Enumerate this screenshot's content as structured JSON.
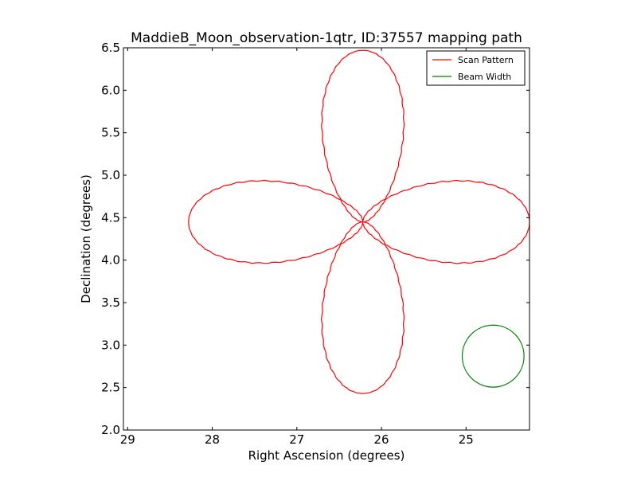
{
  "chart_data": {
    "type": "line",
    "title": "MaddieB_Moon_observation-1qtr, ID:37557 mapping path",
    "xlabel": "Right Ascension (degrees)",
    "ylabel": "Declination (degrees)",
    "xlim": [
      29.05,
      24.25
    ],
    "ylim": [
      2.0,
      6.5
    ],
    "x_ticks": [
      29,
      28,
      27,
      26,
      25
    ],
    "x_tick_labels": [
      "29",
      "28",
      "27",
      "26",
      "25"
    ],
    "y_ticks": [
      2.0,
      2.5,
      3.0,
      3.5,
      4.0,
      4.5,
      5.0,
      5.5,
      6.0,
      6.5
    ],
    "y_tick_labels": [
      "2.0",
      "2.5",
      "3.0",
      "3.5",
      "4.0",
      "4.5",
      "5.0",
      "5.5",
      "6.0",
      "6.5"
    ],
    "grid": false,
    "legend_position": "top-right",
    "series": [
      {
        "name": "Scan Pattern",
        "color": "#ff0000",
        "shape": "four-petal rose scan path",
        "center": [
          26.22,
          4.45
        ],
        "petal_tips": {
          "north": [
            26.22,
            6.47
          ],
          "south": [
            26.22,
            2.43
          ],
          "east": [
            28.28,
            4.45
          ],
          "west": [
            24.25,
            4.45
          ]
        },
        "petal_half_width_deg": 0.55
      },
      {
        "name": "Beam Width",
        "color": "#008000",
        "shape": "circle",
        "center": [
          24.68,
          2.87
        ],
        "radius_deg": 0.365
      }
    ]
  }
}
